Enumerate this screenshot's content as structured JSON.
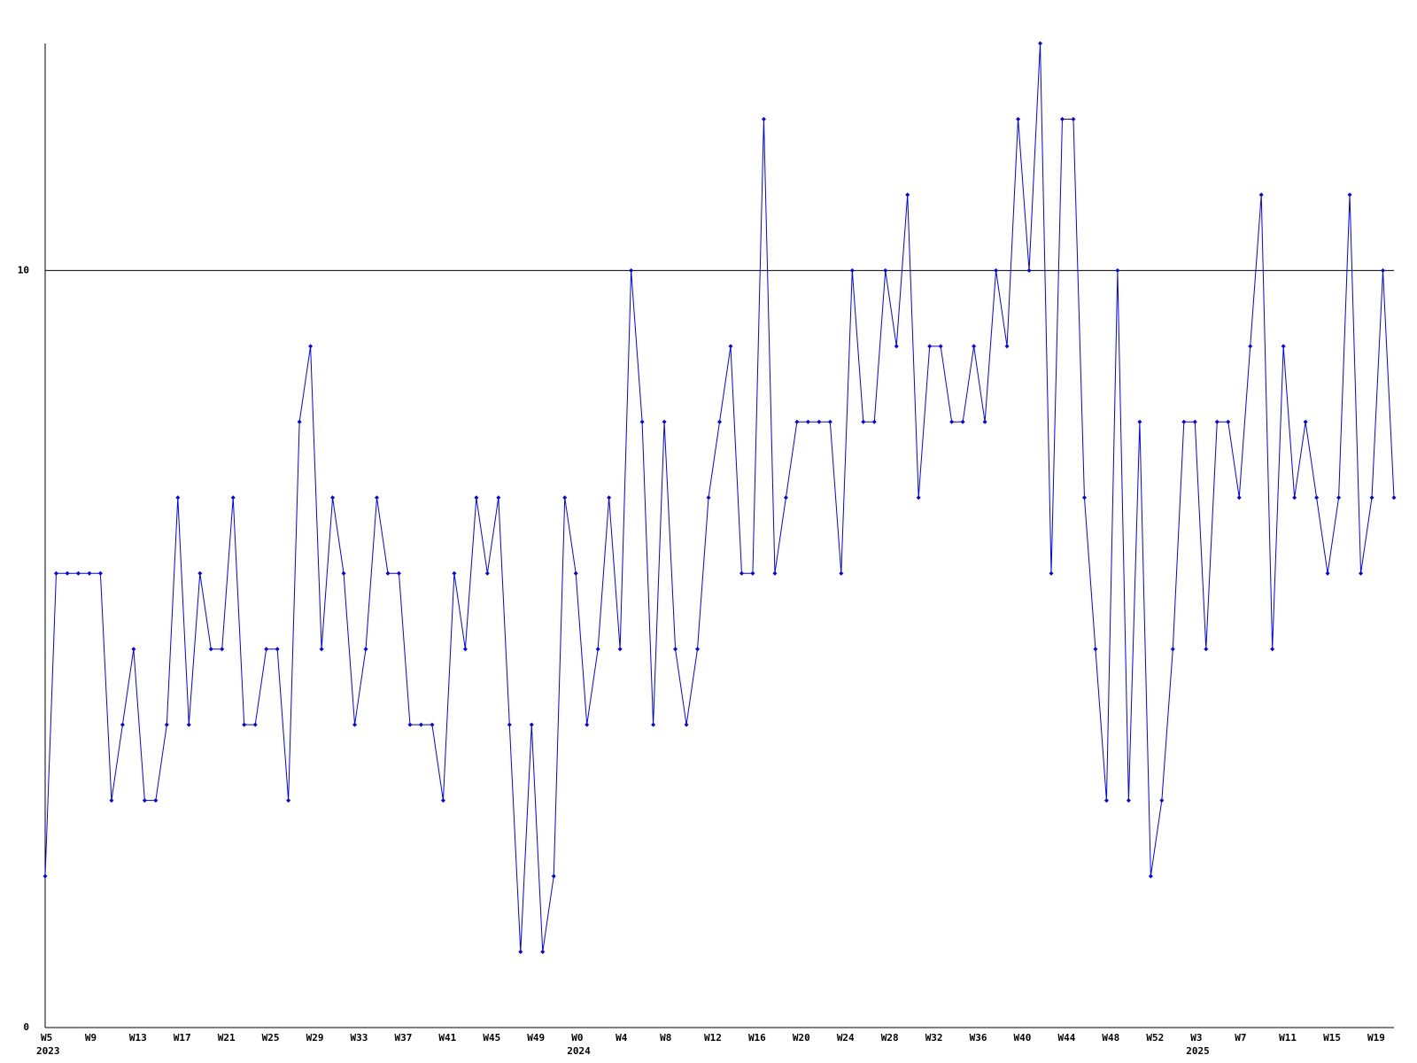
{
  "chart_data": {
    "type": "line",
    "categories": [
      "W5",
      null,
      null,
      null,
      "W9",
      null,
      null,
      null,
      "W13",
      null,
      null,
      null,
      "W17",
      null,
      null,
      null,
      "W21",
      null,
      null,
      null,
      "W25",
      null,
      null,
      null,
      "W29",
      null,
      null,
      null,
      "W33",
      null,
      null,
      null,
      "W37",
      null,
      null,
      null,
      "W41",
      null,
      null,
      null,
      "W45",
      null,
      null,
      null,
      "W49",
      null,
      null,
      null,
      "W0",
      null,
      null,
      null,
      "W4",
      null,
      null,
      null,
      "W8",
      null,
      null,
      null,
      "W12",
      null,
      null,
      null,
      "W16",
      null,
      null,
      null,
      "W20",
      null,
      null,
      null,
      "W24",
      null,
      null,
      null,
      "W28",
      null,
      null,
      null,
      "W32",
      null,
      null,
      null,
      "W36",
      null,
      null,
      null,
      "W40",
      null,
      null,
      null,
      "W44",
      null,
      null,
      null,
      "W48",
      null,
      null,
      null,
      "W52",
      null,
      null,
      null,
      "W3",
      null,
      null,
      null,
      "W7",
      null,
      null,
      null,
      "W11",
      null,
      null,
      null,
      "W15",
      null,
      null,
      null,
      "W19",
      null,
      null
    ],
    "category_years": [
      "2023",
      null,
      null,
      null,
      null,
      null,
      null,
      null,
      null,
      null,
      null,
      null,
      null,
      null,
      null,
      null,
      null,
      null,
      null,
      null,
      null,
      null,
      null,
      null,
      null,
      null,
      null,
      null,
      null,
      null,
      null,
      null,
      null,
      null,
      null,
      null,
      null,
      null,
      null,
      null,
      null,
      null,
      null,
      null,
      null,
      null,
      null,
      null,
      "2024",
      null,
      null,
      null,
      null,
      null,
      null,
      null,
      null,
      null,
      null,
      null,
      null,
      null,
      null,
      null,
      null,
      null,
      null,
      null,
      null,
      null,
      null,
      null,
      null,
      null,
      null,
      null,
      null,
      null,
      null,
      null,
      null,
      null,
      null,
      null,
      null,
      null,
      null,
      null,
      null,
      null,
      null,
      null,
      null,
      null,
      null,
      null,
      null,
      null,
      null,
      null,
      null,
      null,
      null,
      null,
      "2025",
      null,
      null,
      null,
      null,
      null,
      null,
      null,
      null,
      null,
      null,
      null,
      null,
      null,
      null,
      null,
      null,
      null
    ],
    "values": [
      2,
      6,
      6,
      6,
      6,
      6,
      3,
      4,
      5,
      3,
      3,
      4,
      7,
      4,
      6,
      5,
      5,
      7,
      4,
      4,
      5,
      5,
      3,
      8,
      9,
      5,
      7,
      6,
      4,
      5,
      7,
      6,
      6,
      4,
      4,
      4,
      3,
      6,
      5,
      7,
      6,
      7,
      4,
      1,
      4,
      1,
      2,
      7,
      6,
      4,
      5,
      7,
      5,
      10,
      8,
      4,
      8,
      5,
      4,
      5,
      7,
      8,
      9,
      6,
      6,
      12,
      6,
      7,
      8,
      8,
      8,
      8,
      6,
      10,
      8,
      8,
      10,
      9,
      11,
      7,
      9,
      9,
      8,
      8,
      9,
      8,
      10,
      9,
      12,
      10,
      13,
      6,
      12,
      12,
      7,
      5,
      3,
      10,
      3,
      8,
      2,
      3,
      5,
      8,
      8,
      5,
      8,
      8,
      7,
      9,
      11,
      5,
      9,
      7,
      8,
      7,
      6,
      7,
      11,
      6,
      7,
      10,
      7
    ],
    "color": "#0000ff",
    "ylim": [
      0,
      13
    ],
    "yticks": [
      0,
      10
    ],
    "grid": true
  }
}
